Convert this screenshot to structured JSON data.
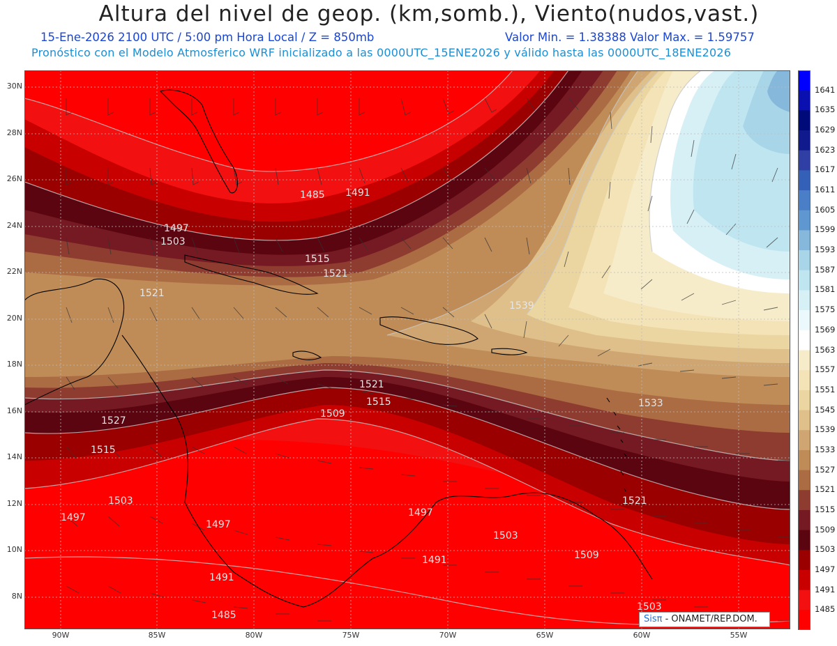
{
  "header": {
    "title": "Altura del nivel de geop. (km,somb.), Viento(nudos,vast.)",
    "line1_left": "15-Ene-2026  2100 UTC / 5:00 pm Hora Local / Z = 850mb",
    "line1_right": "Valor Min. = 1.38388  Valor Max. = 1.59757",
    "line2": "Pronóstico con el Modelo Atmosferico WRF inicializado a las 0000UTC_15ENE2026 y válido hasta las  0000UTC_18ENE2026"
  },
  "axes": {
    "lat_labels": [
      "30N",
      "28N",
      "26N",
      "24N",
      "22N",
      "20N",
      "18N",
      "16N",
      "14N",
      "12N",
      "10N",
      "8N"
    ],
    "lon_labels": [
      "90W",
      "85W",
      "80W",
      "75W",
      "70W",
      "65W",
      "60W",
      "55W"
    ]
  },
  "colorbar": {
    "levels": [
      "1641",
      "1635",
      "1629",
      "1623",
      "1617",
      "1611",
      "1605",
      "1599",
      "1593",
      "1587",
      "1581",
      "1575",
      "1569",
      "1563",
      "1557",
      "1551",
      "1545",
      "1539",
      "1533",
      "1527",
      "1521",
      "1515",
      "1509",
      "1503",
      "1497",
      "1491",
      "1485"
    ],
    "colors": [
      "#0000ff",
      "#0a10b0",
      "#000a78",
      "#101a8c",
      "#2f3fa3",
      "#3560b8",
      "#4a7fc8",
      "#5f97d0",
      "#86b8dc",
      "#a8d6e8",
      "#bfe6f0",
      "#d6f0f6",
      "#ecf9fc",
      "#ffffff",
      "#f7ecca",
      "#f3e3b6",
      "#ebd5a0",
      "#dfc08a",
      "#cfa672",
      "#bf8c58",
      "#ab6c44",
      "#8e3c30",
      "#751a22",
      "#5a0510",
      "#9a0000",
      "#c80000",
      "#f21010",
      "#ff0000"
    ]
  },
  "contour_labels": [
    "1497",
    "1503",
    "1485",
    "1491",
    "1515",
    "1521",
    "1521",
    "1539",
    "1521",
    "1515",
    "1509",
    "1527",
    "1515",
    "1503",
    "1497",
    "1497",
    "1497",
    "1503",
    "1491",
    "1491",
    "1509",
    "1521",
    "1533",
    "1485",
    "1503"
  ],
  "credit": {
    "sis": "Sisπ",
    "rest": " - ONAMET/REP.DOM."
  }
}
